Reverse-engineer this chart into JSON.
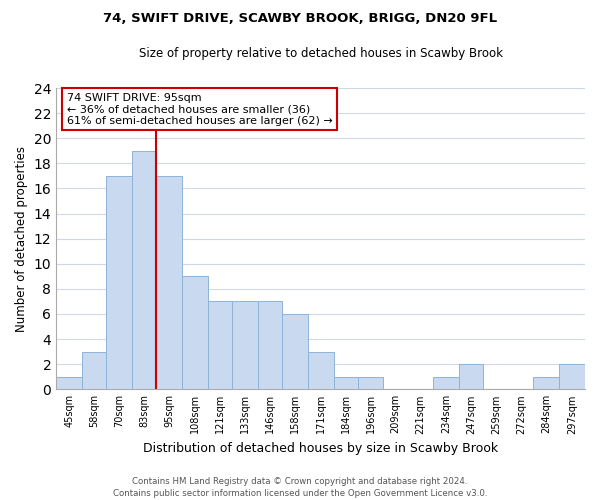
{
  "title": "74, SWIFT DRIVE, SCAWBY BROOK, BRIGG, DN20 9FL",
  "subtitle": "Size of property relative to detached houses in Scawby Brook",
  "xlabel": "Distribution of detached houses by size in Scawby Brook",
  "ylabel": "Number of detached properties",
  "bar_labels": [
    "45sqm",
    "58sqm",
    "70sqm",
    "83sqm",
    "95sqm",
    "108sqm",
    "121sqm",
    "133sqm",
    "146sqm",
    "158sqm",
    "171sqm",
    "184sqm",
    "196sqm",
    "209sqm",
    "221sqm",
    "234sqm",
    "247sqm",
    "259sqm",
    "272sqm",
    "284sqm",
    "297sqm"
  ],
  "bar_values": [
    1,
    3,
    17,
    19,
    17,
    9,
    7,
    7,
    7,
    6,
    3,
    1,
    1,
    0,
    0,
    1,
    2,
    0,
    0,
    1,
    2
  ],
  "bar_edges": [
    45,
    58,
    70,
    83,
    95,
    108,
    121,
    133,
    146,
    158,
    171,
    184,
    196,
    209,
    221,
    234,
    247,
    259,
    272,
    284,
    297,
    310
  ],
  "bar_color": "#c9daf0",
  "bar_edgecolor": "#8fb4d8",
  "vline_x": 95,
  "vline_color": "#cc0000",
  "annotation_lines": [
    "74 SWIFT DRIVE: 95sqm",
    "← 36% of detached houses are smaller (36)",
    "61% of semi-detached houses are larger (62) →"
  ],
  "ylim": [
    0,
    24
  ],
  "yticks": [
    0,
    2,
    4,
    6,
    8,
    10,
    12,
    14,
    16,
    18,
    20,
    22,
    24
  ],
  "footer_line1": "Contains HM Land Registry data © Crown copyright and database right 2024.",
  "footer_line2": "Contains public sector information licensed under the Open Government Licence v3.0.",
  "bg_color": "#ffffff",
  "grid_color": "#d0d9e8"
}
